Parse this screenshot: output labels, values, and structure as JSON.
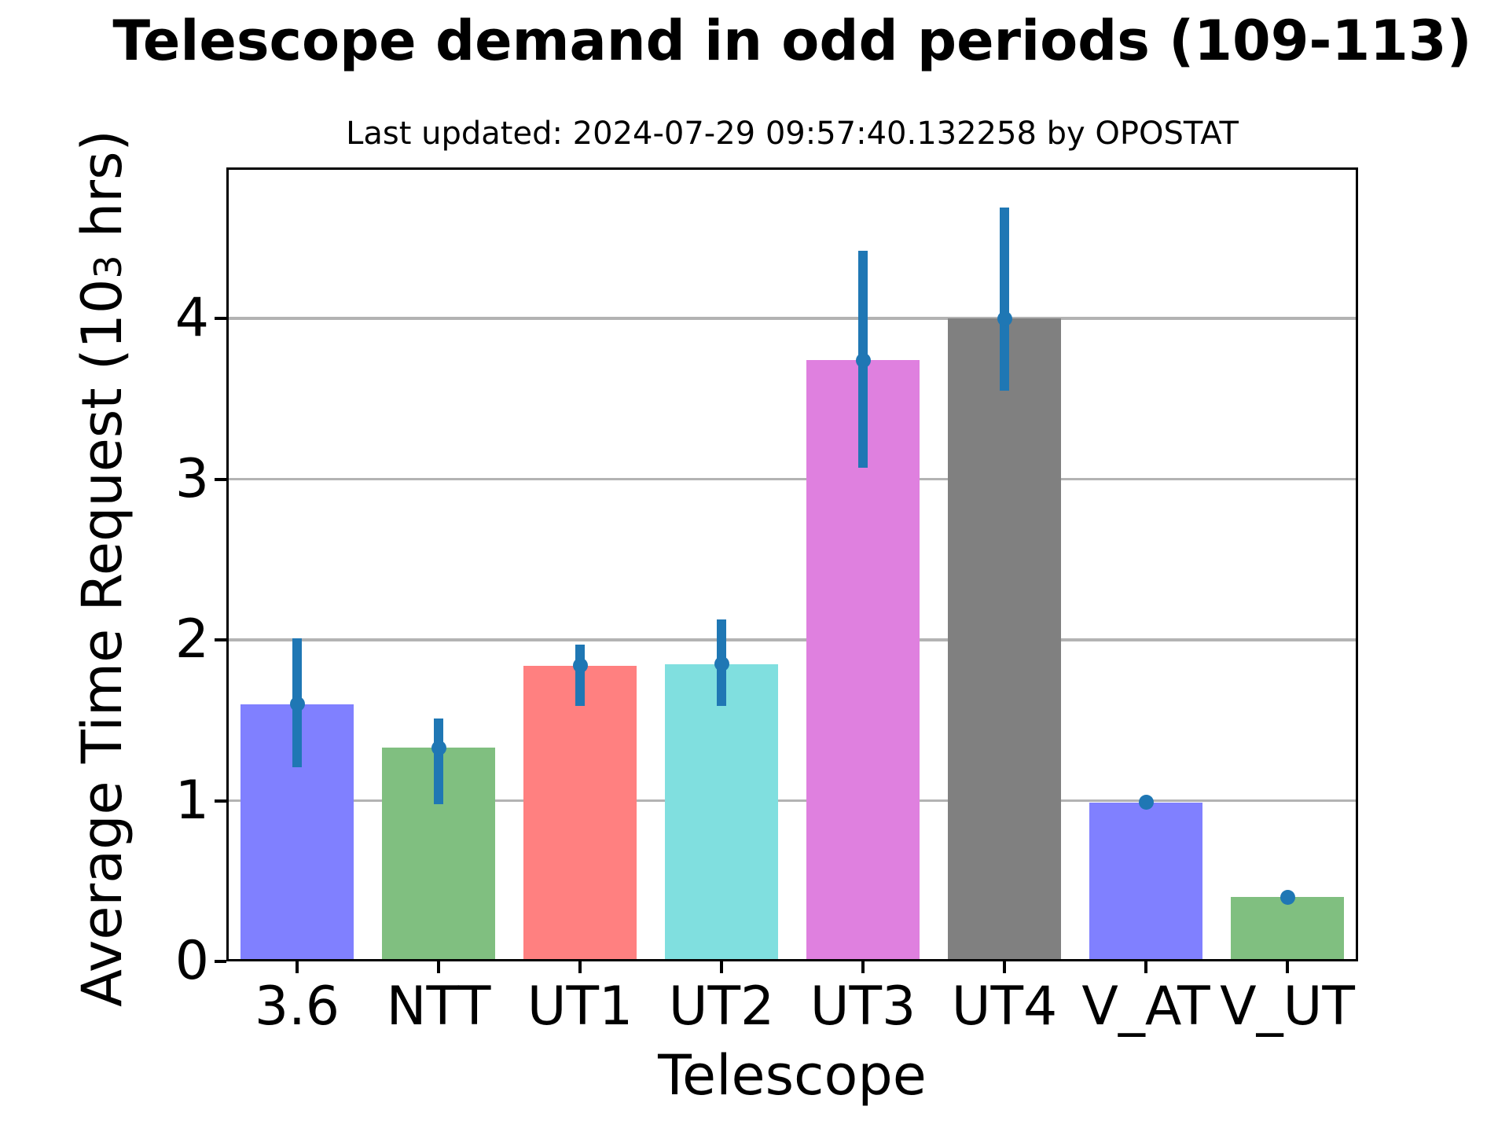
{
  "chart_data": {
    "type": "bar",
    "title": "Telescope demand in odd periods (109-113)",
    "subtitle": "Last updated: 2024-07-29 09:57:40.132258 by OPOSTAT",
    "xlabel": "Telescope",
    "ylabel_prefix": "Average Time Request (10",
    "ylabel_superscript": "3",
    "ylabel_suffix": " hrs)",
    "categories": [
      "3.6",
      "NTT",
      "UT1",
      "UT2",
      "UT3",
      "UT4",
      "V_AT",
      "V_UT"
    ],
    "series": [
      {
        "name": "Average Time Request",
        "values": [
          1.6,
          1.33,
          1.84,
          1.85,
          3.74,
          4.0,
          0.99,
          0.4
        ],
        "error_low": [
          1.21,
          0.98,
          1.59,
          1.59,
          3.07,
          3.55,
          0.97,
          0.38
        ],
        "error_high": [
          2.01,
          1.51,
          1.97,
          2.13,
          4.42,
          4.69,
          1.01,
          0.42
        ]
      }
    ],
    "bar_colors": [
      "#8080ff",
      "#80bf80",
      "#ff8080",
      "#80dfdf",
      "#df80df",
      "#808080",
      "#8080ff",
      "#80bf80"
    ],
    "error_bar_color": "#1f77b4",
    "grid_color": "#b3b3b3",
    "axis_color": "#000000",
    "background_color": "#ffffff",
    "yticks": [
      0,
      1,
      2,
      3,
      4
    ],
    "ylim": [
      0,
      4.94
    ],
    "grid": "horizontal",
    "legend": "none",
    "bar_width_fraction": 0.8
  }
}
